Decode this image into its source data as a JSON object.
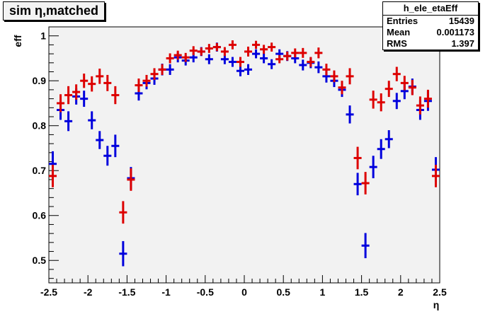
{
  "title": "sim η,matched",
  "stats": {
    "name": "h_ele_etaEff",
    "rows": [
      {
        "label": "Entries",
        "value": "15439"
      },
      {
        "label": "Mean",
        "value": "0.001173"
      },
      {
        "label": "RMS",
        "value": "1.397"
      }
    ]
  },
  "colors": {
    "frame_bg": "#f2f2f2",
    "series_blue": "#0000dd",
    "series_red": "#dd0000"
  },
  "chart_data": {
    "type": "scatter",
    "title": "sim η,matched",
    "xlabel": "η",
    "ylabel": "eff",
    "xlim": [
      -2.5,
      2.5
    ],
    "ylim": [
      0.45,
      1.02
    ],
    "x_ticks": [
      -2.5,
      -2,
      -1.5,
      -1,
      -0.5,
      0,
      0.5,
      1,
      1.5,
      2,
      2.5
    ],
    "x_tick_labels": [
      "-2.5",
      "-2",
      "-1.5",
      "-1",
      "-0.5",
      "0",
      "0.5",
      "1",
      "1.5",
      "2",
      "2.5"
    ],
    "y_ticks": [
      0.5,
      0.6,
      0.7,
      0.8,
      0.9,
      1
    ],
    "y_tick_labels": [
      "0.5",
      "0.6",
      "0.7",
      "0.8",
      "0.9",
      "1"
    ],
    "grid": false,
    "bin_half_width": 0.05,
    "series": [
      {
        "color": "#0000dd",
        "x": [
          -2.45,
          -2.35,
          -2.25,
          -2.15,
          -2.05,
          -1.95,
          -1.85,
          -1.75,
          -1.65,
          -1.55,
          -1.45,
          -1.35,
          -1.25,
          -1.15,
          -1.05,
          -0.95,
          -0.85,
          -0.75,
          -0.65,
          -0.55,
          -0.45,
          -0.35,
          -0.25,
          -0.15,
          -0.05,
          0.05,
          0.15,
          0.25,
          0.35,
          0.45,
          0.55,
          0.65,
          0.75,
          0.85,
          0.95,
          1.05,
          1.15,
          1.25,
          1.35,
          1.45,
          1.55,
          1.65,
          1.75,
          1.85,
          1.95,
          2.05,
          2.15,
          2.25,
          2.35,
          2.45
        ],
        "y": [
          0.715,
          0.835,
          0.81,
          0.865,
          0.86,
          0.812,
          0.768,
          0.733,
          0.755,
          0.515,
          0.683,
          0.872,
          0.895,
          0.905,
          0.925,
          0.925,
          0.952,
          0.945,
          0.952,
          0.965,
          0.948,
          0.975,
          0.948,
          0.942,
          0.922,
          0.925,
          0.96,
          0.95,
          0.937,
          0.96,
          0.955,
          0.95,
          0.935,
          0.94,
          0.93,
          0.91,
          0.9,
          0.88,
          0.825,
          0.67,
          0.533,
          0.708,
          0.748,
          0.77,
          0.855,
          0.877,
          0.887,
          0.835,
          0.855,
          0.702
        ],
        "err": [
          0.028,
          0.022,
          0.022,
          0.018,
          0.018,
          0.02,
          0.02,
          0.022,
          0.025,
          0.028,
          0.025,
          0.016,
          0.014,
          0.014,
          0.013,
          0.012,
          0.011,
          0.011,
          0.011,
          0.01,
          0.011,
          0.01,
          0.011,
          0.011,
          0.012,
          0.012,
          0.01,
          0.011,
          0.011,
          0.01,
          0.011,
          0.011,
          0.012,
          0.012,
          0.013,
          0.014,
          0.014,
          0.016,
          0.02,
          0.025,
          0.028,
          0.025,
          0.022,
          0.02,
          0.018,
          0.018,
          0.018,
          0.022,
          0.022,
          0.028
        ]
      },
      {
        "color": "#dd0000",
        "x": [
          -2.45,
          -2.35,
          -2.25,
          -2.15,
          -2.05,
          -1.95,
          -1.85,
          -1.75,
          -1.65,
          -1.55,
          -1.45,
          -1.35,
          -1.25,
          -1.15,
          -1.05,
          -0.95,
          -0.85,
          -0.75,
          -0.65,
          -0.55,
          -0.45,
          -0.35,
          -0.25,
          -0.15,
          -0.05,
          0.05,
          0.15,
          0.25,
          0.35,
          0.45,
          0.55,
          0.65,
          0.75,
          0.85,
          0.95,
          1.05,
          1.15,
          1.25,
          1.35,
          1.45,
          1.55,
          1.65,
          1.75,
          1.85,
          1.95,
          2.05,
          2.15,
          2.25,
          2.35,
          2.45
        ],
        "y": [
          0.688,
          0.85,
          0.868,
          0.875,
          0.9,
          0.893,
          0.91,
          0.895,
          0.868,
          0.607,
          0.68,
          0.89,
          0.9,
          0.915,
          0.925,
          0.95,
          0.957,
          0.952,
          0.967,
          0.965,
          0.972,
          0.975,
          0.965,
          0.98,
          0.942,
          0.965,
          0.98,
          0.97,
          0.975,
          0.948,
          0.955,
          0.962,
          0.962,
          0.942,
          0.962,
          0.925,
          0.91,
          0.885,
          0.91,
          0.728,
          0.672,
          0.858,
          0.852,
          0.882,
          0.915,
          0.895,
          0.885,
          0.845,
          0.86,
          0.688
        ],
        "err": [
          0.025,
          0.02,
          0.02,
          0.017,
          0.016,
          0.017,
          0.017,
          0.018,
          0.02,
          0.025,
          0.025,
          0.015,
          0.013,
          0.013,
          0.012,
          0.011,
          0.01,
          0.01,
          0.01,
          0.009,
          0.01,
          0.009,
          0.01,
          0.01,
          0.011,
          0.011,
          0.009,
          0.01,
          0.01,
          0.009,
          0.01,
          0.01,
          0.011,
          0.011,
          0.012,
          0.013,
          0.013,
          0.015,
          0.018,
          0.025,
          0.025,
          0.02,
          0.02,
          0.018,
          0.016,
          0.016,
          0.017,
          0.02,
          0.02,
          0.025
        ]
      }
    ]
  }
}
